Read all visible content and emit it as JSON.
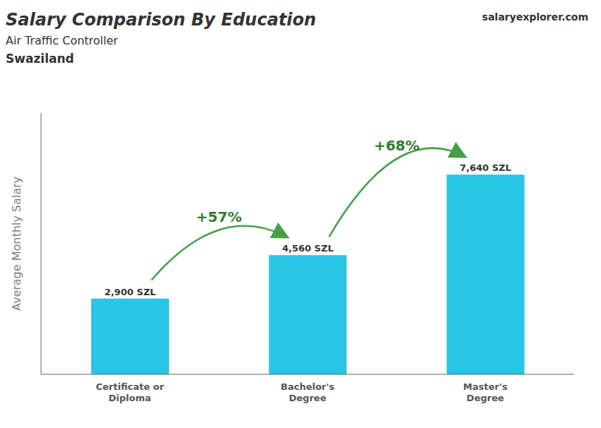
{
  "chart_data": {
    "type": "bar",
    "title": "Salary Comparison By Education",
    "subtitle": [
      "Air Traffic Controller",
      "Swaziland"
    ],
    "y_label": "Average Monthly Salary",
    "categories": [
      "Certificate or\nDiploma",
      "Bachelor's\nDegree",
      "Master's\nDegree"
    ],
    "values": [
      2900,
      4560,
      7640
    ],
    "value_labels": [
      "2,900 SZL",
      "4,560 SZL",
      "7,640 SZL"
    ],
    "data_labels": true,
    "color": "#29c5e6",
    "ylim": [
      0,
      10000
    ],
    "tick_labels": "x",
    "grid": false,
    "annotations": [
      {
        "text": "+57%",
        "between": [
          "Certificate or\nDiploma",
          "Bachelor's\nDegree"
        ]
      },
      {
        "text": "+68%",
        "between": [
          "Bachelor's\nDegree",
          "Master's\nDegree"
        ]
      },
      {
        "text": "salaryexplorer.com"
      }
    ]
  }
}
